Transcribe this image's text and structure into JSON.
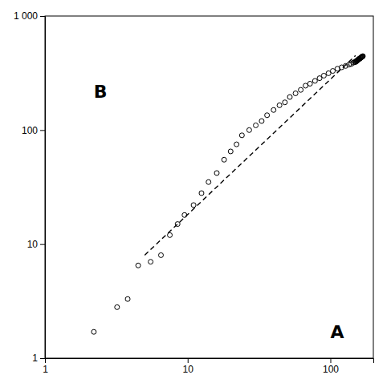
{
  "chart_data": {
    "type": "scatter",
    "log": true,
    "grid": false,
    "xlim": [
      1,
      200
    ],
    "ylim": [
      1,
      1000
    ],
    "xticks": [
      1,
      10,
      100
    ],
    "yticks": [
      1,
      10,
      100,
      {
        "value": 1000,
        "label": "1 000"
      }
    ],
    "series": [
      {
        "type": "scatter",
        "marker": "open-circle",
        "color": "black",
        "x": [
          2.2,
          3.2,
          3.8,
          4.5,
          5.5,
          6.5,
          7.5,
          8.5,
          9.5,
          11,
          12.5,
          14,
          16,
          18,
          20,
          22,
          24,
          27,
          30,
          33,
          36,
          40,
          44,
          48,
          52,
          57,
          62,
          67,
          72,
          78,
          84,
          90,
          97,
          104,
          112,
          120,
          128,
          135,
          140,
          145,
          148,
          150,
          151,
          152,
          153,
          154,
          155,
          156,
          157,
          158,
          159,
          160,
          161,
          162,
          163,
          164,
          165,
          166,
          167,
          168,
          169
        ],
        "values": [
          1.7,
          2.8,
          3.3,
          6.5,
          7.0,
          8.0,
          12,
          15,
          18,
          22,
          28,
          35,
          42,
          55,
          65,
          75,
          90,
          100,
          110,
          120,
          135,
          150,
          165,
          175,
          195,
          210,
          225,
          245,
          255,
          270,
          285,
          300,
          315,
          330,
          345,
          355,
          365,
          375,
          380,
          390,
          395,
          395,
          400,
          400,
          405,
          408,
          410,
          412,
          415,
          418,
          420,
          422,
          425,
          428,
          430,
          432,
          435,
          438,
          440,
          442,
          445
        ]
      },
      {
        "type": "line",
        "line_style": "dashed",
        "color": "black",
        "x": [
          5,
          150
        ],
        "values": [
          8,
          450
        ]
      }
    ],
    "annotations": [
      {
        "text": "A",
        "x": 100,
        "y": 1.5
      },
      {
        "text": "B",
        "x": 2.2,
        "y": 250
      }
    ]
  }
}
